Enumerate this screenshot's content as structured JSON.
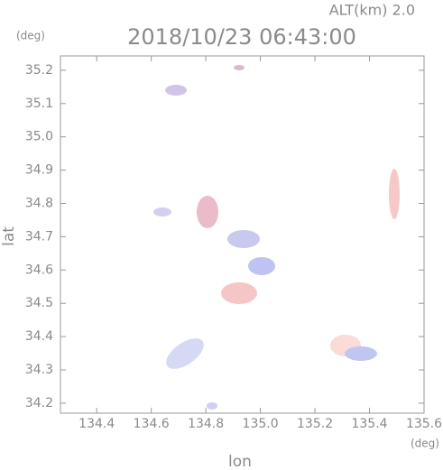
{
  "chart_data": {
    "type": "map",
    "title": "2018/10/23 06:43:00",
    "subtitle": "ALT(km) 2.0",
    "y_unit": "(deg)",
    "x_unit": "(deg)",
    "x_label": "lon",
    "y_label": "lat",
    "xlim": [
      134.267,
      135.6
    ],
    "ylim": [
      34.17,
      35.243
    ],
    "xticks": [
      134.4,
      134.6,
      134.8,
      {
        "value": 135,
        "label": "135.0"
      },
      135.2,
      135.4,
      135.6
    ],
    "yticks": [
      34.2,
      34.3,
      34.4,
      34.5,
      34.6,
      34.7,
      34.8,
      34.9,
      {
        "value": 35,
        "label": "35.0"
      },
      35.1,
      35.2
    ]
  }
}
